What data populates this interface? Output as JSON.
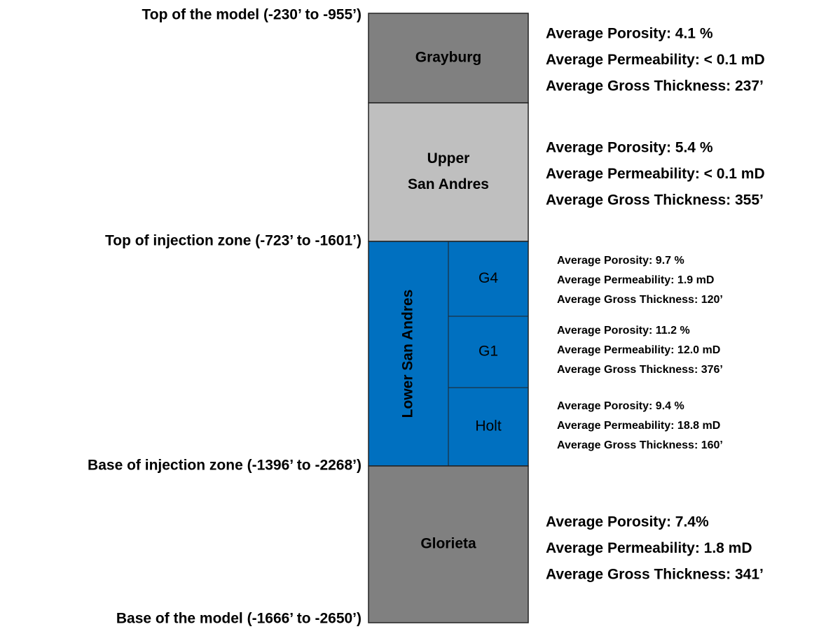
{
  "boundaries": [
    "Top of the model (-230’ to -955’)",
    "Top of injection zone (-723’ to -1601’)",
    "Base of injection zone (-1396’ to -2268’)",
    "Base of the model (-1666’ to -2650’)"
  ],
  "units": [
    {
      "name": [
        "Grayburg"
      ],
      "stats": [
        "Average Porosity: 4.1 %",
        "Average Permeability: < 0.1 mD",
        "Average Gross Thickness: 237’"
      ]
    },
    {
      "name": [
        "Upper",
        "San Andres"
      ],
      "stats": [
        "Average Porosity: 5.4 %",
        "Average Permeability: < 0.1 mD",
        "Average Gross Thickness: 355’"
      ]
    },
    {
      "name": [
        "Lower San Andres"
      ],
      "subunits": [
        {
          "name": "G4",
          "stats": [
            "Average Porosity: 9.7 %",
            "Average Permeability: 1.9 mD",
            "Average Gross Thickness: 120’"
          ]
        },
        {
          "name": "G1",
          "stats": [
            "Average Porosity: 11.2 %",
            "Average Permeability: 12.0 mD",
            "Average Gross Thickness: 376’"
          ]
        },
        {
          "name": "Holt",
          "stats": [
            "Average Porosity: 9.4 %",
            "Average Permeability: 18.8 mD",
            "Average Gross Thickness: 160’"
          ]
        }
      ]
    },
    {
      "name": [
        "Glorieta"
      ],
      "stats": [
        "Average Porosity: 7.4%",
        "Average Permeability: 1.8 mD",
        "Average Gross Thickness: 341’"
      ]
    }
  ]
}
